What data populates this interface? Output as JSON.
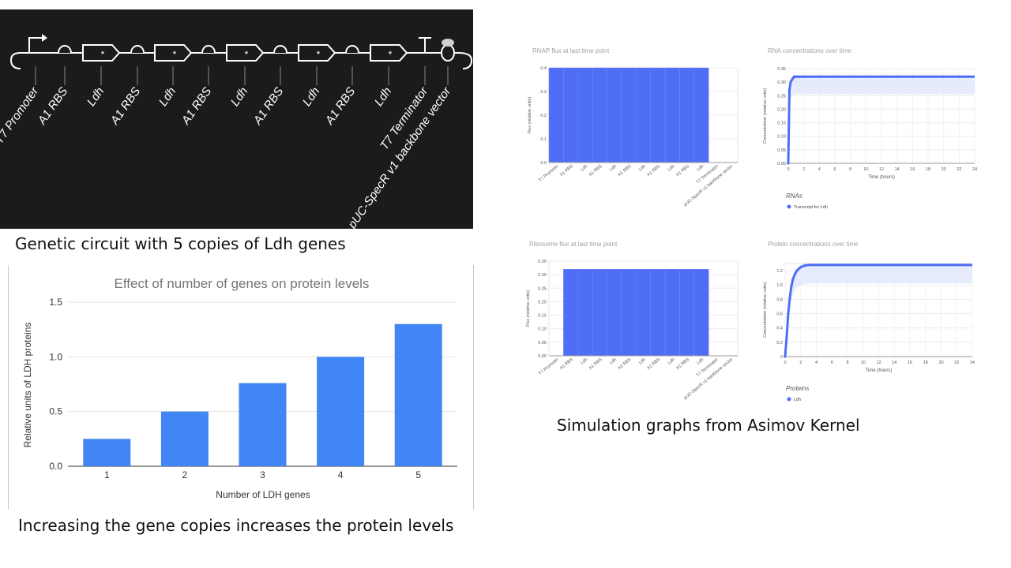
{
  "captions": {
    "circuit": "Genetic circuit with 5 copies of Ldh genes",
    "simulation": "Simulation graphs from Asimov Kernel",
    "conclusion": "Increasing the gene copies increases the protein levels"
  },
  "circuit": {
    "parts": [
      "T7 Promoter",
      "A1 RBS",
      "Ldh",
      "A1 RBS",
      "Ldh",
      "A1 RBS",
      "Ldh",
      "A1 RBS",
      "Ldh",
      "A1 RBS",
      "Ldh",
      "T7 Terminator",
      "pUC-SpecR v1 backbone vector"
    ],
    "gene_marker": "*"
  },
  "chart_data": [
    {
      "id": "protein-levels",
      "type": "bar",
      "title": "Effect of number of genes on protein levels",
      "xlabel": "Number of LDH genes",
      "ylabel": "Relative units of LDH proteins",
      "categories": [
        "1",
        "2",
        "3",
        "4",
        "5"
      ],
      "values": [
        0.25,
        0.5,
        0.76,
        1.0,
        1.3
      ],
      "ylim": [
        0,
        1.5
      ],
      "yticks": [
        "0.0",
        "0.5",
        "1.0",
        "1.5"
      ],
      "color": "#4285f4",
      "grid": true
    },
    {
      "id": "rnap-flux",
      "type": "bar",
      "title": "RNAP flux at last time point",
      "ylabel": "Flux (relative units)",
      "categories": [
        "T7 Promoter",
        "A1 RBS",
        "Ldh",
        "A1 RBS",
        "Ldh",
        "A1 RBS",
        "Ldh",
        "A1 RBS",
        "Ldh",
        "A1 RBS",
        "Ldh",
        "T7 Terminator",
        "pUC-SpecR v1 backbone vector"
      ],
      "values": [
        0.4,
        0.4,
        0.4,
        0.4,
        0.4,
        0.4,
        0.4,
        0.4,
        0.4,
        0.4,
        0.4,
        0,
        0
      ],
      "ylim": [
        0,
        0.4
      ],
      "yticks": [
        "0.0",
        "0.1",
        "0.2",
        "0.3",
        "0.4"
      ],
      "color": "#4f6ef5"
    },
    {
      "id": "rna-concentration",
      "type": "line",
      "title": "RNA concentrations over time",
      "xlabel": "Time (hours)",
      "ylabel": "Concentration (relative units)",
      "legend_title": "RNAs",
      "series": [
        {
          "name": "Transcript for Ldh",
          "x": [
            0,
            0.15,
            0.3,
            0.5,
            0.75,
            1,
            1.5,
            2,
            4,
            8,
            12,
            16,
            20,
            24
          ],
          "y": [
            0,
            0.27,
            0.3,
            0.31,
            0.32,
            0.32,
            0.32,
            0.32,
            0.32,
            0.32,
            0.32,
            0.32,
            0.32,
            0.32
          ]
        }
      ],
      "xlim": [
        0,
        24
      ],
      "ylim": [
        0,
        0.35
      ],
      "xticks": [
        "0",
        "2",
        "4",
        "6",
        "8",
        "10",
        "12",
        "14",
        "16",
        "18",
        "20",
        "22",
        "24"
      ],
      "yticks": [
        "0.00",
        "0.05",
        "0.10",
        "0.15",
        "0.20",
        "0.25",
        "0.30",
        "0.35"
      ],
      "color": "#4f6ef5"
    },
    {
      "id": "ribosome-flux",
      "type": "bar",
      "title": "Ribosome flux at last time point",
      "ylabel": "Flux (relative units)",
      "categories": [
        "T7 Promoter",
        "A1 RBS",
        "Ldh",
        "A1 RBS",
        "Ldh",
        "A1 RBS",
        "Ldh",
        "A1 RBS",
        "Ldh",
        "A1 RBS",
        "Ldh",
        "T7 Terminator",
        "pUC-SpecR v1 backbone vector"
      ],
      "values": [
        0,
        0.32,
        0.32,
        0.32,
        0.32,
        0.32,
        0.32,
        0.32,
        0.32,
        0.32,
        0.32,
        0,
        0
      ],
      "ylim": [
        0,
        0.35
      ],
      "yticks": [
        "0.00",
        "0.05",
        "0.10",
        "0.15",
        "0.20",
        "0.25",
        "0.30",
        "0.35"
      ],
      "color": "#4f6ef5"
    },
    {
      "id": "protein-concentration",
      "type": "line",
      "title": "Protein concentrations over time",
      "xlabel": "Time (hours)",
      "ylabel": "Concentration (relative units)",
      "legend_title": "Proteins",
      "series": [
        {
          "name": "Ldh",
          "x": [
            0,
            0.2,
            0.4,
            0.6,
            0.8,
            1,
            1.25,
            1.5,
            2,
            2.5,
            3,
            4,
            6,
            8,
            12,
            16,
            20,
            24
          ],
          "y": [
            0,
            0.27,
            0.6,
            0.82,
            0.98,
            1.08,
            1.15,
            1.2,
            1.25,
            1.27,
            1.28,
            1.28,
            1.28,
            1.28,
            1.28,
            1.28,
            1.28,
            1.28
          ]
        }
      ],
      "xlim": [
        0,
        24
      ],
      "ylim": [
        0,
        1.3
      ],
      "xticks": [
        "0",
        "2",
        "4",
        "6",
        "8",
        "10",
        "12",
        "14",
        "16",
        "18",
        "20",
        "22",
        "24"
      ],
      "yticks": [
        "0",
        "0.2",
        "0.4",
        "0.6",
        "0.8",
        "1.0",
        "1.2"
      ],
      "color": "#4f6ef5"
    }
  ]
}
